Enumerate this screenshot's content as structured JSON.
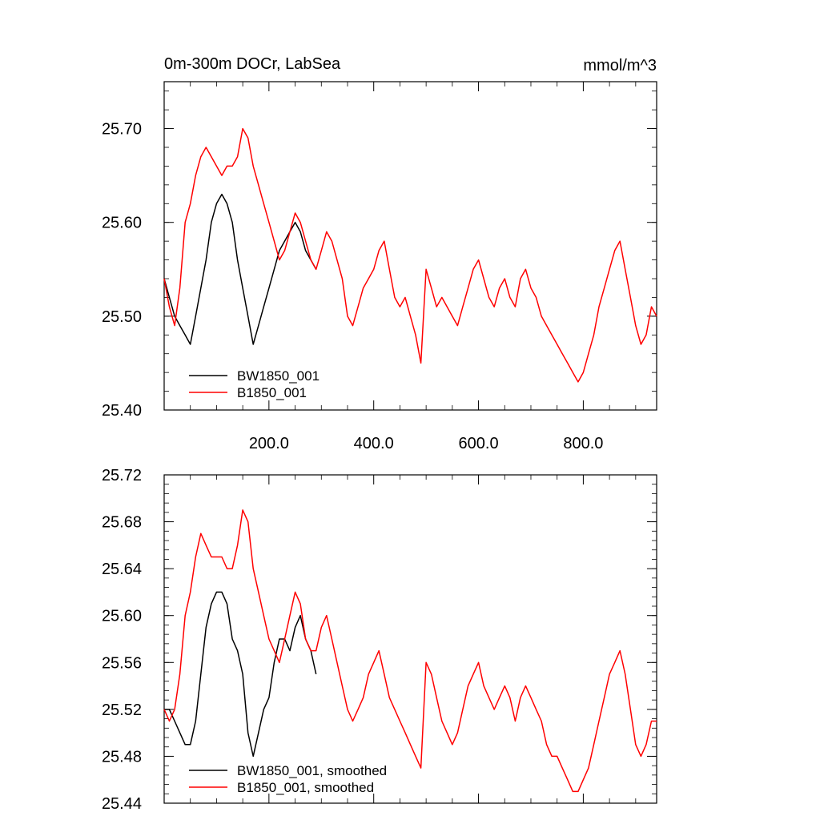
{
  "chart_data": [
    {
      "type": "line",
      "title": "0m-300m DOCr, LabSea",
      "units": "mmol/m^3",
      "xlim": [
        0,
        940
      ],
      "ylim": [
        25.4,
        25.75
      ],
      "xticks": [
        200,
        400,
        600,
        800
      ],
      "xtick_labels": [
        "200.0",
        "400.0",
        "600.0",
        "800.0"
      ],
      "yticks": [
        25.4,
        25.5,
        25.6,
        25.7
      ],
      "ytick_labels": [
        "25.40",
        "25.50",
        "25.60",
        "25.70"
      ],
      "legend": "bottom-left",
      "grid": false,
      "series": [
        {
          "name": "BW1850_001",
          "color": "#000000",
          "x": [
            0,
            10,
            20,
            30,
            40,
            50,
            60,
            70,
            80,
            90,
            100,
            110,
            120,
            130,
            140,
            150,
            160,
            170,
            180,
            190,
            200,
            210,
            220,
            230,
            240,
            250,
            260,
            270,
            280,
            290
          ],
          "y": [
            25.54,
            25.52,
            25.5,
            25.49,
            25.48,
            25.47,
            25.5,
            25.53,
            25.56,
            25.6,
            25.62,
            25.63,
            25.62,
            25.6,
            25.56,
            25.53,
            25.5,
            25.47,
            25.49,
            25.51,
            25.53,
            25.55,
            25.57,
            25.58,
            25.59,
            25.6,
            25.59,
            25.57,
            25.56,
            25.55
          ]
        },
        {
          "name": "B1850_001",
          "color": "#ff0000",
          "x": [
            0,
            10,
            20,
            30,
            40,
            50,
            60,
            70,
            80,
            90,
            100,
            110,
            120,
            130,
            140,
            150,
            160,
            170,
            180,
            190,
            200,
            210,
            220,
            230,
            240,
            250,
            260,
            270,
            280,
            290,
            300,
            310,
            320,
            330,
            340,
            350,
            360,
            370,
            380,
            390,
            400,
            410,
            420,
            430,
            440,
            450,
            460,
            470,
            480,
            490,
            500,
            510,
            520,
            530,
            540,
            550,
            560,
            570,
            580,
            590,
            600,
            610,
            620,
            630,
            640,
            650,
            660,
            670,
            680,
            690,
            700,
            710,
            720,
            730,
            740,
            750,
            760,
            770,
            780,
            790,
            800,
            810,
            820,
            830,
            840,
            850,
            860,
            870,
            880,
            890,
            900,
            910,
            920,
            930,
            940
          ],
          "y": [
            25.54,
            25.51,
            25.49,
            25.53,
            25.6,
            25.62,
            25.65,
            25.67,
            25.68,
            25.67,
            25.66,
            25.65,
            25.66,
            25.66,
            25.67,
            25.7,
            25.69,
            25.66,
            25.64,
            25.62,
            25.6,
            25.58,
            25.56,
            25.57,
            25.59,
            25.61,
            25.6,
            25.58,
            25.56,
            25.55,
            25.57,
            25.59,
            25.58,
            25.56,
            25.54,
            25.5,
            25.49,
            25.51,
            25.53,
            25.54,
            25.55,
            25.57,
            25.58,
            25.55,
            25.52,
            25.51,
            25.52,
            25.5,
            25.48,
            25.45,
            25.55,
            25.53,
            25.51,
            25.52,
            25.51,
            25.5,
            25.49,
            25.51,
            25.53,
            25.55,
            25.56,
            25.54,
            25.52,
            25.51,
            25.53,
            25.54,
            25.52,
            25.51,
            25.54,
            25.55,
            25.53,
            25.52,
            25.5,
            25.49,
            25.48,
            25.47,
            25.46,
            25.45,
            25.44,
            25.43,
            25.44,
            25.46,
            25.48,
            25.51,
            25.53,
            25.55,
            25.57,
            25.58,
            25.55,
            25.52,
            25.49,
            25.47,
            25.48,
            25.51,
            25.5
          ]
        }
      ]
    },
    {
      "type": "line",
      "xlim": [
        0,
        940
      ],
      "ylim": [
        25.44,
        25.72
      ],
      "yticks": [
        25.44,
        25.48,
        25.52,
        25.56,
        25.6,
        25.64,
        25.68,
        25.72
      ],
      "ytick_labels": [
        "25.44",
        "25.48",
        "25.52",
        "25.56",
        "25.60",
        "25.64",
        "25.68",
        "25.72"
      ],
      "legend": "bottom-left",
      "grid": false,
      "series": [
        {
          "name": "BW1850_001, smoothed",
          "color": "#000000",
          "x": [
            0,
            10,
            20,
            30,
            40,
            50,
            60,
            70,
            80,
            90,
            100,
            110,
            120,
            130,
            140,
            150,
            160,
            170,
            180,
            190,
            200,
            210,
            220,
            230,
            240,
            250,
            260,
            270,
            280,
            290
          ],
          "y": [
            25.52,
            25.52,
            25.51,
            25.5,
            25.49,
            25.49,
            25.51,
            25.55,
            25.59,
            25.61,
            25.62,
            25.62,
            25.61,
            25.58,
            25.57,
            25.55,
            25.5,
            25.48,
            25.5,
            25.52,
            25.53,
            25.56,
            25.58,
            25.58,
            25.57,
            25.59,
            25.6,
            25.58,
            25.57,
            25.55
          ]
        },
        {
          "name": "B1850_001, smoothed",
          "color": "#ff0000",
          "x": [
            0,
            10,
            20,
            30,
            40,
            50,
            60,
            70,
            80,
            90,
            100,
            110,
            120,
            130,
            140,
            150,
            160,
            170,
            180,
            190,
            200,
            210,
            220,
            230,
            240,
            250,
            260,
            270,
            280,
            290,
            300,
            310,
            320,
            330,
            340,
            350,
            360,
            370,
            380,
            390,
            400,
            410,
            420,
            430,
            440,
            450,
            460,
            470,
            480,
            490,
            500,
            510,
            520,
            530,
            540,
            550,
            560,
            570,
            580,
            590,
            600,
            610,
            620,
            630,
            640,
            650,
            660,
            670,
            680,
            690,
            700,
            710,
            720,
            730,
            740,
            750,
            760,
            770,
            780,
            790,
            800,
            810,
            820,
            830,
            840,
            850,
            860,
            870,
            880,
            890,
            900,
            910,
            920,
            930,
            940
          ],
          "y": [
            25.52,
            25.51,
            25.52,
            25.55,
            25.6,
            25.62,
            25.65,
            25.67,
            25.66,
            25.65,
            25.65,
            25.65,
            25.64,
            25.64,
            25.66,
            25.69,
            25.68,
            25.64,
            25.62,
            25.6,
            25.58,
            25.57,
            25.56,
            25.58,
            25.6,
            25.62,
            25.61,
            25.58,
            25.57,
            25.57,
            25.59,
            25.6,
            25.58,
            25.56,
            25.54,
            25.52,
            25.51,
            25.52,
            25.53,
            25.55,
            25.56,
            25.57,
            25.55,
            25.53,
            25.52,
            25.51,
            25.5,
            25.49,
            25.48,
            25.47,
            25.56,
            25.55,
            25.53,
            25.51,
            25.5,
            25.49,
            25.5,
            25.52,
            25.54,
            25.55,
            25.56,
            25.54,
            25.53,
            25.52,
            25.53,
            25.54,
            25.53,
            25.51,
            25.53,
            25.54,
            25.53,
            25.52,
            25.51,
            25.49,
            25.48,
            25.48,
            25.47,
            25.46,
            25.45,
            25.45,
            25.46,
            25.47,
            25.49,
            25.51,
            25.53,
            25.55,
            25.56,
            25.57,
            25.55,
            25.52,
            25.49,
            25.48,
            25.49,
            25.51,
            25.51
          ]
        }
      ]
    }
  ]
}
